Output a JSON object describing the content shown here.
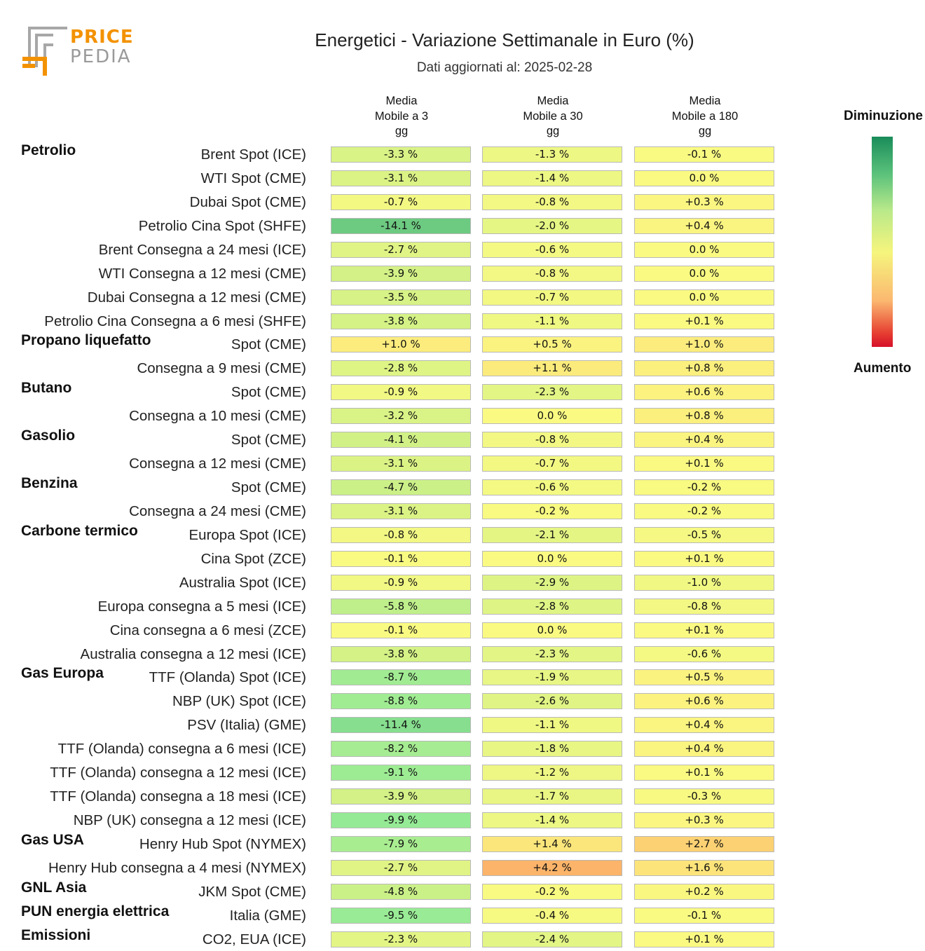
{
  "logo": {
    "word1": "PRICE",
    "word2": "PEDIA"
  },
  "colors": {
    "logo_orange": "#f39200",
    "logo_gray": "#9a9a9a"
  },
  "header": {
    "title": "Energetici - Variazione Settimanale in Euro (%)",
    "subtitle": "Dati aggiornati al: 2025-02-28"
  },
  "legend": {
    "top": "Diminuzione",
    "bottom": "Aumento"
  },
  "chart_data": {
    "type": "heatmap",
    "title": "Energetici - Variazione Settimanale in Euro (%)",
    "subtitle": "Dati aggiornati al: 2025-02-28",
    "unit": "%",
    "columns": [
      [
        "Media",
        "Mobile a 3",
        "gg"
      ],
      [
        "Media",
        "Mobile a 30",
        "gg"
      ],
      [
        "Media",
        "Mobile a 180",
        "gg"
      ]
    ],
    "color_scale": {
      "negative": "Diminuzione",
      "positive": "Aumento"
    },
    "rows": [
      {
        "group": "Petrolio",
        "label": "Brent Spot (ICE)",
        "values": [
          -3.3,
          -1.3,
          -0.1
        ],
        "text": [
          "-3.3 %",
          "-1.3 %",
          "-0.1 %"
        ]
      },
      {
        "group": "",
        "label": "WTI Spot (CME)",
        "values": [
          -3.1,
          -1.4,
          0.0
        ],
        "text": [
          "-3.1 %",
          "-1.4 %",
          "0.0 %"
        ]
      },
      {
        "group": "",
        "label": "Dubai Spot (CME)",
        "values": [
          -0.7,
          -0.8,
          0.3
        ],
        "text": [
          "-0.7 %",
          "-0.8 %",
          "+0.3 %"
        ]
      },
      {
        "group": "",
        "label": "Petrolio Cina Spot (SHFE)",
        "values": [
          -14.1,
          -2.0,
          0.4
        ],
        "text": [
          "-14.1 %",
          "-2.0 %",
          "+0.4 %"
        ]
      },
      {
        "group": "",
        "label": "Brent Consegna a 24 mesi (ICE)",
        "values": [
          -2.7,
          -0.6,
          0.0
        ],
        "text": [
          "-2.7 %",
          "-0.6 %",
          "0.0 %"
        ]
      },
      {
        "group": "",
        "label": "WTI Consegna a 12 mesi (CME)",
        "values": [
          -3.9,
          -0.8,
          0.0
        ],
        "text": [
          "-3.9 %",
          "-0.8 %",
          "0.0 %"
        ]
      },
      {
        "group": "",
        "label": "Dubai Consegna a 12 mesi (CME)",
        "values": [
          -3.5,
          -0.7,
          0.0
        ],
        "text": [
          "-3.5 %",
          "-0.7 %",
          "0.0 %"
        ]
      },
      {
        "group": "",
        "label": "Petrolio Cina Consegna a 6 mesi (SHFE)",
        "values": [
          -3.8,
          -1.1,
          0.1
        ],
        "text": [
          "-3.8 %",
          "-1.1 %",
          "+0.1 %"
        ]
      },
      {
        "group": "Propano liquefatto",
        "label": "Spot (CME)",
        "values": [
          1.0,
          0.5,
          1.0
        ],
        "text": [
          "+1.0 %",
          "+0.5 %",
          "+1.0 %"
        ]
      },
      {
        "group": "",
        "label": "Consegna a 9 mesi (CME)",
        "values": [
          -2.8,
          1.1,
          0.8
        ],
        "text": [
          "-2.8 %",
          "+1.1 %",
          "+0.8 %"
        ]
      },
      {
        "group": "Butano",
        "label": "Spot (CME)",
        "values": [
          -0.9,
          -2.3,
          0.6
        ],
        "text": [
          "-0.9 %",
          "-2.3 %",
          "+0.6 %"
        ]
      },
      {
        "group": "",
        "label": "Consegna a 10 mesi (CME)",
        "values": [
          -3.2,
          0.0,
          0.8
        ],
        "text": [
          "-3.2 %",
          "0.0 %",
          "+0.8 %"
        ]
      },
      {
        "group": "Gasolio",
        "label": "Spot (CME)",
        "values": [
          -4.1,
          -0.8,
          0.4
        ],
        "text": [
          "-4.1 %",
          "-0.8 %",
          "+0.4 %"
        ]
      },
      {
        "group": "",
        "label": "Consegna a 12 mesi (CME)",
        "values": [
          -3.1,
          -0.7,
          0.1
        ],
        "text": [
          "-3.1 %",
          "-0.7 %",
          "+0.1 %"
        ]
      },
      {
        "group": "Benzina",
        "label": "Spot (CME)",
        "values": [
          -4.7,
          -0.6,
          -0.2
        ],
        "text": [
          "-4.7 %",
          "-0.6 %",
          "-0.2 %"
        ]
      },
      {
        "group": "",
        "label": "Consegna a 24 mesi (CME)",
        "values": [
          -3.1,
          -0.2,
          -0.2
        ],
        "text": [
          "-3.1 %",
          "-0.2 %",
          "-0.2 %"
        ]
      },
      {
        "group": "Carbone termico",
        "label": "Europa Spot (ICE)",
        "values": [
          -0.8,
          -2.1,
          -0.5
        ],
        "text": [
          "-0.8 %",
          "-2.1 %",
          "-0.5 %"
        ]
      },
      {
        "group": "",
        "label": "Cina Spot (ZCE)",
        "values": [
          -0.1,
          0.0,
          0.1
        ],
        "text": [
          "-0.1 %",
          "0.0 %",
          "+0.1 %"
        ]
      },
      {
        "group": "",
        "label": "Australia Spot (ICE)",
        "values": [
          -0.9,
          -2.9,
          -1.0
        ],
        "text": [
          "-0.9 %",
          "-2.9 %",
          "-1.0 %"
        ]
      },
      {
        "group": "",
        "label": "Europa consegna a 5 mesi (ICE)",
        "values": [
          -5.8,
          -2.8,
          -0.8
        ],
        "text": [
          "-5.8 %",
          "-2.8 %",
          "-0.8 %"
        ]
      },
      {
        "group": "",
        "label": "Cina consegna a 6 mesi (ZCE)",
        "values": [
          -0.1,
          0.0,
          0.1
        ],
        "text": [
          "-0.1 %",
          "0.0 %",
          "+0.1 %"
        ]
      },
      {
        "group": "",
        "label": "Australia consegna a 12 mesi (ICE)",
        "values": [
          -3.8,
          -2.3,
          -0.6
        ],
        "text": [
          "-3.8 %",
          "-2.3 %",
          "-0.6 %"
        ]
      },
      {
        "group": "Gas Europa",
        "label": "TTF (Olanda) Spot (ICE)",
        "values": [
          -8.7,
          -1.9,
          0.5
        ],
        "text": [
          "-8.7 %",
          "-1.9 %",
          "+0.5 %"
        ]
      },
      {
        "group": "",
        "label": "NBP (UK) Spot (ICE)",
        "values": [
          -8.8,
          -2.6,
          0.6
        ],
        "text": [
          "-8.8 %",
          "-2.6 %",
          "+0.6 %"
        ]
      },
      {
        "group": "",
        "label": "PSV (Italia) (GME)",
        "values": [
          -11.4,
          -1.1,
          0.4
        ],
        "text": [
          "-11.4 %",
          "-1.1 %",
          "+0.4 %"
        ]
      },
      {
        "group": "",
        "label": "TTF (Olanda) consegna a 6 mesi (ICE)",
        "values": [
          -8.2,
          -1.8,
          0.4
        ],
        "text": [
          "-8.2 %",
          "-1.8 %",
          "+0.4 %"
        ]
      },
      {
        "group": "",
        "label": "TTF (Olanda) consegna a 12 mesi (ICE)",
        "values": [
          -9.1,
          -1.2,
          0.1
        ],
        "text": [
          "-9.1 %",
          "-1.2 %",
          "+0.1 %"
        ]
      },
      {
        "group": "",
        "label": "TTF (Olanda) consegna a 18 mesi (ICE)",
        "values": [
          -3.9,
          -1.7,
          -0.3
        ],
        "text": [
          "-3.9 %",
          "-1.7 %",
          "-0.3 %"
        ]
      },
      {
        "group": "",
        "label": "NBP (UK) consegna a 12 mesi (ICE)",
        "values": [
          -9.9,
          -1.4,
          0.3
        ],
        "text": [
          "-9.9 %",
          "-1.4 %",
          "+0.3 %"
        ]
      },
      {
        "group": "Gas USA",
        "label": "Henry Hub Spot (NYMEX)",
        "values": [
          -7.9,
          1.4,
          2.7
        ],
        "text": [
          "-7.9 %",
          "+1.4 %",
          "+2.7 %"
        ]
      },
      {
        "group": "",
        "label": "Henry Hub consegna a 4 mesi (NYMEX)",
        "values": [
          -2.7,
          4.2,
          1.6
        ],
        "text": [
          "-2.7 %",
          "+4.2 %",
          "+1.6 %"
        ]
      },
      {
        "group": "GNL Asia",
        "label": "JKM Spot (CME)",
        "values": [
          -4.8,
          -0.2,
          0.2
        ],
        "text": [
          "-4.8 %",
          "-0.2 %",
          "+0.2 %"
        ]
      },
      {
        "group": "PUN energia elettrica",
        "label": "Italia (GME)",
        "values": [
          -9.5,
          -0.4,
          -0.1
        ],
        "text": [
          "-9.5 %",
          "-0.4 %",
          "-0.1 %"
        ]
      },
      {
        "group": "Emissioni",
        "label": "CO2, EUA (ICE)",
        "values": [
          -2.3,
          -2.4,
          0.1
        ],
        "text": [
          "-2.3 %",
          "-2.4 %",
          "+0.1 %"
        ]
      }
    ]
  }
}
